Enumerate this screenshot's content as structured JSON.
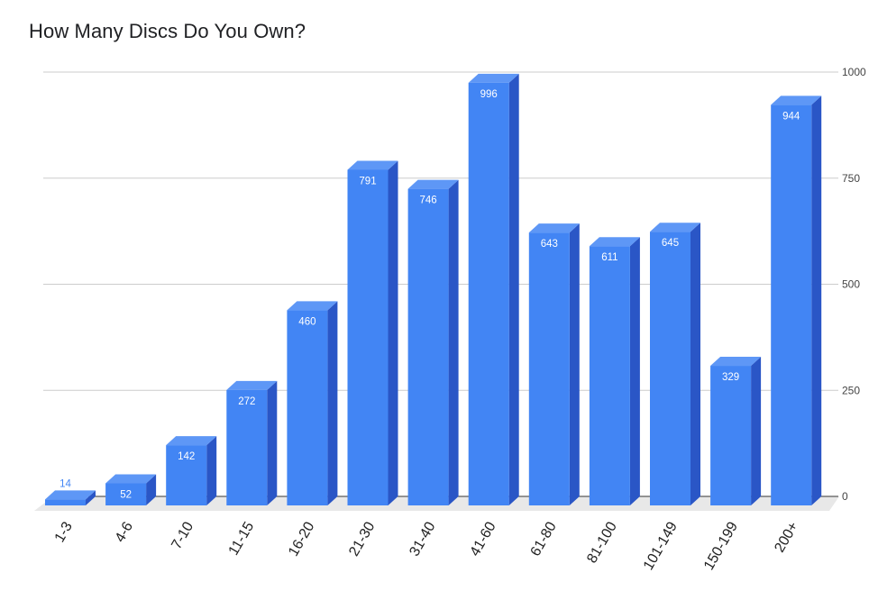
{
  "chart_data": {
    "type": "bar",
    "title": "How Many Discs Do You Own?",
    "categories": [
      "1-3",
      "4-6",
      "7-10",
      "11-15",
      "16-20",
      "21-30",
      "31-40",
      "41-60",
      "61-80",
      "81-100",
      "101-149",
      "150-199",
      "200+"
    ],
    "values": [
      14,
      52,
      142,
      272,
      460,
      791,
      746,
      996,
      643,
      611,
      645,
      329,
      944
    ],
    "xlabel": "",
    "ylabel": "",
    "ylim": [
      0,
      1000
    ],
    "y_ticks": [
      0,
      250,
      500,
      750,
      1000
    ],
    "y_axis_side": "right",
    "grid": true,
    "legend": "none",
    "style": "3d-bar",
    "colors": {
      "bar_front": "#4285f4",
      "bar_top": "#5e97f6",
      "bar_side": "#2a56c6",
      "label_inside": "#ffffff",
      "label_outside": "#4285f4",
      "grid": "#cccccc",
      "floor": "#e8e8e8"
    }
  }
}
